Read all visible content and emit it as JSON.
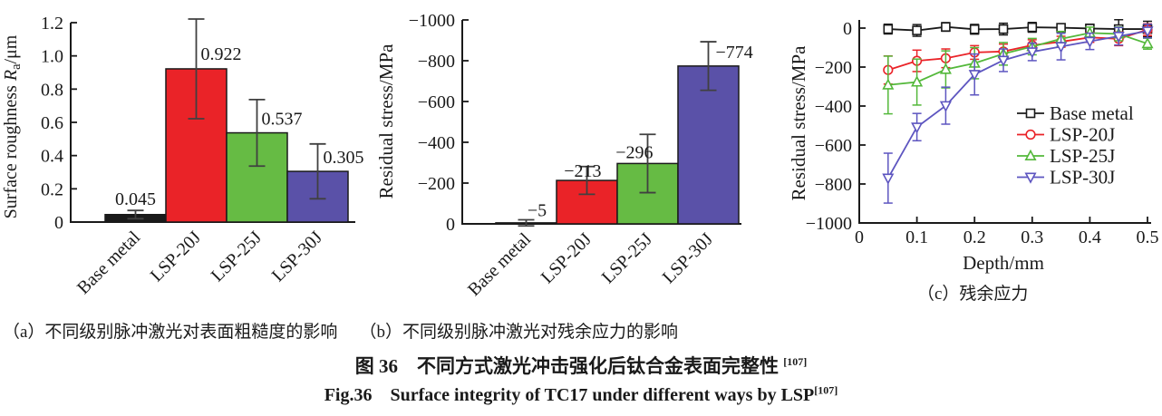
{
  "captions": {
    "a": "（a）不同级别脉冲激光对表面粗糙度的影响",
    "b": "（b）不同级别脉冲激光对残余应力的影响",
    "c": "（c）残余应力",
    "main_zh": "图 36　不同方式激光冲击强化后钛合金表面完整性 ",
    "main_zh_ref": "[107]",
    "main_en": "Fig.36　Surface integrity of TC17 under different ways by LSP",
    "main_en_ref": "[107]"
  },
  "colors": {
    "ink": "#1a1a1a",
    "error_bar": "#404040",
    "red": "#ea2328",
    "bar_green": "#66bb44",
    "bar_purple": "#5a51a8",
    "line_green": "#53b83a",
    "line_blue": "#5d55c0"
  },
  "chart_data": [
    {
      "id": "a",
      "type": "bar",
      "ylabel": "Surface roughness Ra/μm",
      "ylabel_parts": [
        {
          "t": "Surface roughness ",
          "style": "normal"
        },
        {
          "t": "R",
          "style": "italic"
        },
        {
          "t": "a",
          "style": "sub"
        },
        {
          "t": "/μm",
          "style": "normal"
        }
      ],
      "categories": [
        "Base metal",
        "LSP-20J",
        "LSP-25J",
        "LSP-30J"
      ],
      "values": [
        0.045,
        0.922,
        0.537,
        0.305
      ],
      "errors": [
        0.025,
        0.3,
        0.2,
        0.165
      ],
      "value_labels": [
        "0.045",
        "0.922",
        "0.537",
        "0.305"
      ],
      "bar_colors": [
        "#1a1a1a",
        "#ea2328",
        "#66bb44",
        "#5a51a8"
      ],
      "ylim": [
        0,
        1.2
      ],
      "yticks": [
        0,
        0.2,
        0.4,
        0.6,
        0.8,
        1.0,
        1.2
      ],
      "ytick_labels": [
        "0",
        "0.2",
        "0.4",
        "0.6",
        "0.8",
        "1.0",
        "1.2"
      ],
      "grid": false
    },
    {
      "id": "b",
      "type": "bar",
      "ylabel": "Residual stress/MPa",
      "categories": [
        "Base metal",
        "LSP-20J",
        "LSP-25J",
        "LSP-30J"
      ],
      "values": [
        -5,
        -213,
        -296,
        -774
      ],
      "errors": [
        15,
        68,
        143,
        119
      ],
      "value_labels": [
        "−5",
        "−213",
        "−296",
        "−774"
      ],
      "bar_colors": [
        "#1a1a1a",
        "#ea2328",
        "#66bb44",
        "#5a51a8"
      ],
      "ylim": [
        0,
        -1000
      ],
      "yticks": [
        0,
        -200,
        -400,
        -600,
        -800,
        -1000
      ],
      "ytick_labels": [
        "0",
        "−200",
        "−400",
        "−600",
        "−800",
        "−1000"
      ],
      "grid": false
    },
    {
      "id": "c",
      "type": "line",
      "xlabel": "Depth/mm",
      "ylabel": "Residual stress/MPa",
      "x": [
        0.05,
        0.1,
        0.15,
        0.2,
        0.25,
        0.3,
        0.35,
        0.4,
        0.45,
        0.5
      ],
      "xlim": [
        0,
        0.5
      ],
      "ylim": [
        0,
        -1000
      ],
      "xticks": [
        0,
        0.1,
        0.2,
        0.3,
        0.4,
        0.5
      ],
      "xtick_labels": [
        "0",
        "0.1",
        "0.2",
        "0.3",
        "0.4",
        "0.5"
      ],
      "yticks": [
        0,
        -200,
        -400,
        -600,
        -800,
        -1000
      ],
      "ytick_labels": [
        "0",
        "−200",
        "−400",
        "−600",
        "−800",
        "−1000"
      ],
      "legend_position": "right-center",
      "grid": false,
      "series": [
        {
          "name": "Base metal",
          "color": "#1a1a1a",
          "marker": "square",
          "values": [
            -5,
            -12,
            6,
            -6,
            -5,
            4,
            2,
            -2,
            -5,
            -5
          ],
          "errors": [
            25,
            30,
            22,
            25,
            30,
            25,
            20,
            22,
            48,
            40
          ]
        },
        {
          "name": "LSP-20J",
          "color": "#ea2328",
          "marker": "circle",
          "values": [
            -215,
            -168,
            -155,
            -125,
            -120,
            -88,
            -70,
            -48,
            -55,
            -8
          ],
          "errors": [
            72,
            55,
            48,
            35,
            38,
            28,
            28,
            25,
            35,
            30
          ]
        },
        {
          "name": "LSP-25J",
          "color": "#53b83a",
          "marker": "triangle-up",
          "values": [
            -292,
            -277,
            -212,
            -180,
            -132,
            -95,
            -55,
            -25,
            -30,
            -80
          ],
          "errors": [
            148,
            118,
            95,
            80,
            58,
            42,
            38,
            30,
            35,
            28
          ]
        },
        {
          "name": "LSP-30J",
          "color": "#5d55c0",
          "marker": "triangle-down",
          "values": [
            -770,
            -508,
            -398,
            -238,
            -165,
            -122,
            -95,
            -68,
            -42,
            -15
          ],
          "errors": [
            128,
            70,
            95,
            105,
            58,
            45,
            68,
            42,
            45,
            35
          ]
        }
      ]
    }
  ]
}
